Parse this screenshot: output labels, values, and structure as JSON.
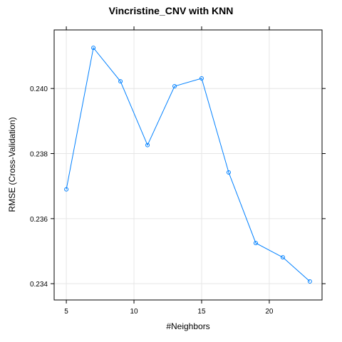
{
  "chart_data": {
    "type": "line",
    "title": "Vincristine_CNV with KNN",
    "xlabel": "#Neighbors",
    "ylabel": "RMSE (Cross-Validation)",
    "x": [
      5,
      7,
      9,
      11,
      13,
      15,
      17,
      19,
      21,
      23
    ],
    "series": [
      {
        "values": [
          0.2369,
          0.24125,
          0.24022,
          0.23826,
          0.24007,
          0.24031,
          0.23742,
          0.23525,
          0.23481,
          0.23407
        ]
      }
    ],
    "xlim": [
      4.1,
      23.9
    ],
    "ylim": [
      0.2335,
      0.2418
    ],
    "x_ticks": [
      5,
      10,
      15,
      20
    ],
    "y_ticks": [
      0.234,
      0.236,
      0.238,
      0.24
    ],
    "x_tick_labels": [
      "5",
      "10",
      "15",
      "20"
    ],
    "y_tick_labels": [
      "0.234",
      "0.236",
      "0.238",
      "0.240"
    ],
    "grid": true,
    "line_color": "#0080ff",
    "marker": "open-circle"
  }
}
